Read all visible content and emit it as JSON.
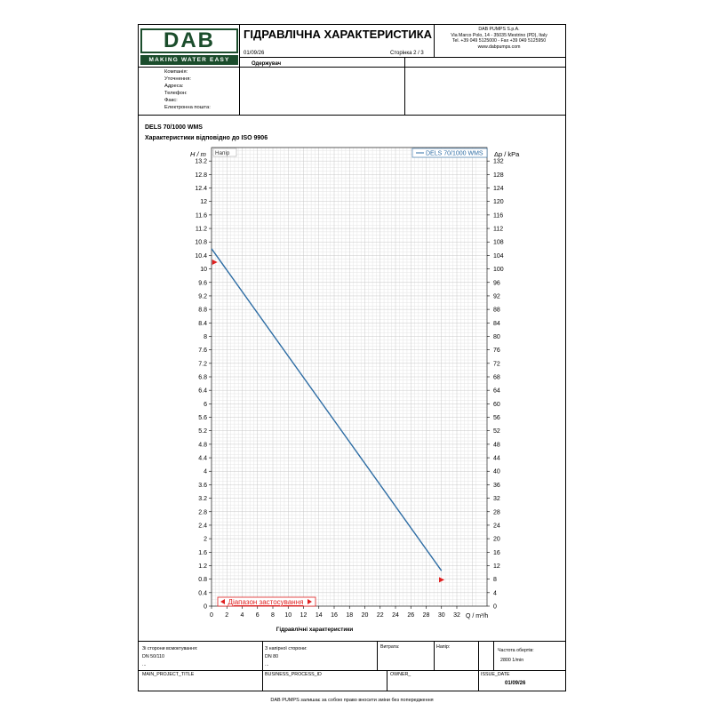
{
  "header": {
    "logo_text": "DAB",
    "logo_tagline": "MAKING WATER EASY",
    "title": "ГІДРАВЛІЧНА ХАРАКТЕРИСТИКА",
    "date": "01/09/26",
    "page": "Сторінка 2 / 3",
    "company_lines": [
      "DAB PUMPS S.p.A.",
      "Via Marco Polo, 14 - 35035 Mestrino (PD), Italy",
      "Tel. +39 049 5125000 - Fax +39 049 5125950",
      "www.dabpumps.com"
    ]
  },
  "recipient": {
    "label": "Одержувач",
    "fields": [
      "Компанія:",
      "Уточнення:",
      "Адреса:",
      "Телефон:",
      "Факс:",
      "Електронна пошта:"
    ]
  },
  "product": {
    "name": "DELS 70/1000 WMS",
    "subtitle": "Характеристики відповідно до ISO 9906"
  },
  "chart_data": {
    "type": "line",
    "title": "",
    "xlabel": "Гідравлічні характеристики",
    "x_unit_label": "Q / m³/h",
    "y_left_unit_label": "H / m",
    "y_right_unit_label": "Δp / kPa",
    "curve_label": "Напір",
    "series": [
      {
        "name": "DELS 70/1000 WMS",
        "color": "#2e6da4",
        "x": [
          0,
          30
        ],
        "y": [
          10.6,
          1.05
        ]
      }
    ],
    "xlim": [
      0,
      30
    ],
    "ylim": [
      0,
      13.6
    ],
    "y_right_lim": [
      0,
      132
    ],
    "x_ticks": [
      0,
      2,
      4,
      6,
      8,
      10,
      12,
      14,
      16,
      18,
      20,
      22,
      24,
      26,
      28,
      30,
      32
    ],
    "y_ticks": [
      0,
      0.4,
      0.8,
      1.2,
      1.6,
      2,
      2.4,
      2.8,
      3.2,
      3.6,
      4,
      4.4,
      4.8,
      5.2,
      5.6,
      6,
      6.4,
      6.8,
      7.2,
      7.6,
      8,
      8.4,
      8.8,
      9.2,
      9.6,
      10,
      10.4,
      10.8,
      11.2,
      11.6,
      12,
      12.4,
      12.8,
      13.2
    ],
    "y_right_ticks": [
      0,
      4,
      8,
      12,
      16,
      20,
      24,
      28,
      32,
      36,
      40,
      44,
      48,
      52,
      56,
      60,
      64,
      68,
      72,
      76,
      80,
      84,
      88,
      92,
      96,
      100,
      104,
      108,
      112,
      116,
      120,
      124,
      128,
      132
    ],
    "markers": [
      {
        "x": 0.2,
        "y": 10.2,
        "color": "#e02020"
      },
      {
        "x": 29.8,
        "y": 0.78,
        "color": "#e02020"
      }
    ],
    "range_label": "Діапазон застосування",
    "range_color": "#e02020",
    "grid": true,
    "legend": "top-right"
  },
  "footer": {
    "row1": [
      {
        "label": "Зі сторони всмоктування:",
        "value": "DN 50/110",
        "extra": "..."
      },
      {
        "label": "З напірної сторони:",
        "value": "DN 80",
        "extra": "..."
      },
      {
        "label": "Витрата:",
        "value": "",
        "extra": ""
      },
      {
        "label": "Напір:",
        "value": "",
        "extra": ""
      },
      {
        "label": "Частота обертів:",
        "value": "2800 1/min",
        "extra": ""
      }
    ],
    "row2": [
      {
        "label": "MAIN_PROJECT_TITLE",
        "value": ""
      },
      {
        "label": "BUSINESS_PROCESS_ID",
        "value": ""
      },
      {
        "label": "OWNER_",
        "value": ""
      },
      {
        "label": "ISSUE_DATE",
        "value": "01/09/26"
      }
    ],
    "note": "DAB PUMPS залишає за собою право вносити зміни без попередження"
  }
}
